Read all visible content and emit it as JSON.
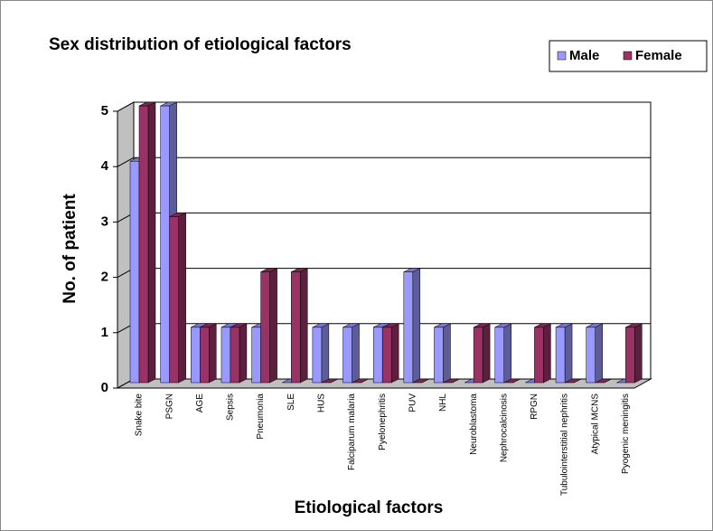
{
  "chart_data": {
    "type": "bar3d",
    "title": "Sex distribution of etiological factors",
    "xlabel": "Etiological factors",
    "ylabel": "No. of patient",
    "categories": [
      "Snake bite",
      "PSGN",
      "AGE",
      "Sepsis",
      "Pneumonia",
      "SLE",
      "HUS",
      "Falciparum malaria",
      "Pyelonephritis",
      "PUV",
      "NHL",
      "Neuroblastoma",
      "Nephrocalcinosis",
      "RPGN",
      "Tubulointerstitial nephritis",
      "Atypical MCNS",
      "Pyogenic meningitis"
    ],
    "series": [
      {
        "name": "Male",
        "color": "#9999ff",
        "values": [
          4,
          5,
          1,
          1,
          1,
          0,
          1,
          1,
          1,
          2,
          1,
          0,
          1,
          0,
          1,
          1,
          0
        ]
      },
      {
        "name": "Female",
        "color": "#993366",
        "values": [
          5,
          3,
          1,
          1,
          2,
          2,
          0,
          0,
          1,
          0,
          0,
          1,
          0,
          1,
          0,
          0,
          1
        ]
      }
    ],
    "ylim": [
      0,
      5
    ],
    "yticks": [
      0,
      1,
      2,
      3,
      4,
      5
    ],
    "grid": true,
    "legend": "top-right"
  }
}
